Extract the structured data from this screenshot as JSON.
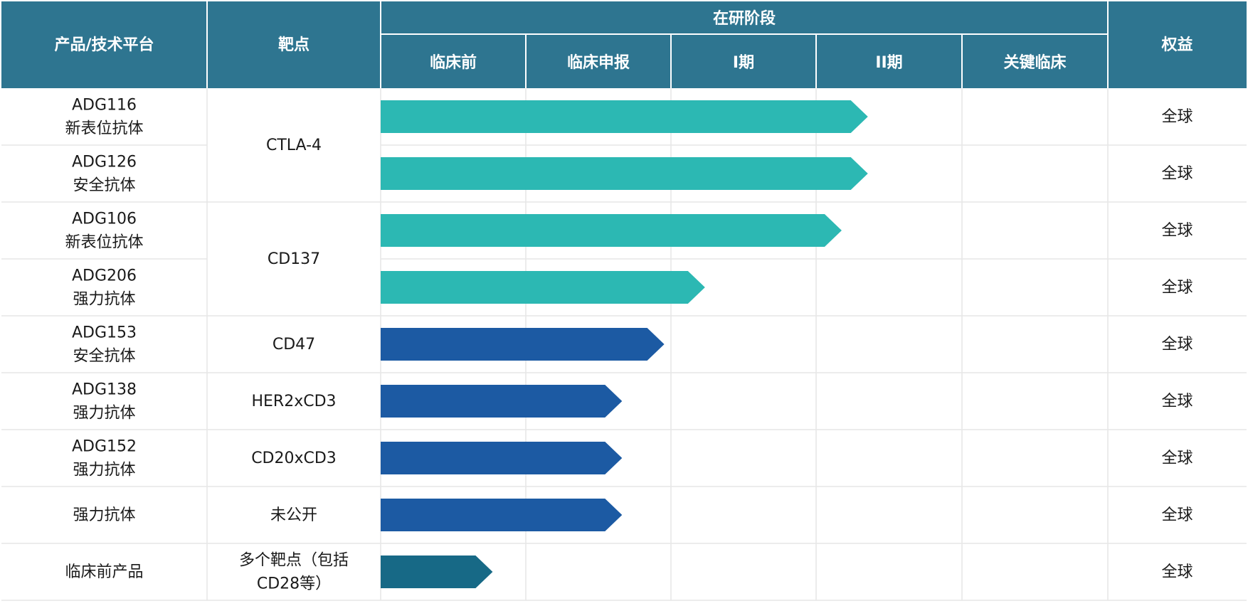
{
  "colors": {
    "header_bg": "#2E7590",
    "header_line": "#ffffff",
    "grid_line": "#E6E6E6",
    "teal": "#2CB8B3",
    "blue": "#1C5AA3",
    "dark_teal": "#176986"
  },
  "header": {
    "product": "产品/技术平台",
    "target": "靶点",
    "stage_group": "在研阶段",
    "rights": "权益",
    "stages": [
      "临床前",
      "临床申报",
      "I期",
      "II期",
      "关键临床"
    ]
  },
  "rows": [
    {
      "product": [
        "ADG116",
        "新表位抗体"
      ],
      "rights": "全球",
      "progress": 3.35,
      "color": "teal"
    },
    {
      "product": [
        "ADG126",
        "安全抗体"
      ],
      "rights": "全球",
      "progress": 3.35,
      "color": "teal"
    },
    {
      "product": [
        "ADG106",
        "新表位抗体"
      ],
      "rights": "全球",
      "progress": 3.17,
      "color": "teal"
    },
    {
      "product": [
        "ADG206",
        "强力抗体"
      ],
      "rights": "全球",
      "progress": 2.23,
      "color": "teal"
    },
    {
      "product": [
        "ADG153",
        "安全抗体"
      ],
      "rights": "全球",
      "progress": 1.95,
      "color": "blue"
    },
    {
      "product": [
        "ADG138",
        "强力抗体"
      ],
      "rights": "全球",
      "progress": 1.66,
      "color": "blue"
    },
    {
      "product": [
        "ADG152",
        "强力抗体"
      ],
      "rights": "全球",
      "progress": 1.66,
      "color": "blue"
    },
    {
      "product": [
        "强力抗体"
      ],
      "rights": "全球",
      "progress": 1.66,
      "color": "blue"
    },
    {
      "product": [
        "临床前产品"
      ],
      "rights": "全球",
      "progress": 0.77,
      "color": "dark_teal"
    }
  ],
  "targets": [
    {
      "label": [
        "CTLA-4"
      ],
      "row_start": 0,
      "row_span": 2
    },
    {
      "label": [
        "CD137"
      ],
      "row_start": 2,
      "row_span": 2
    },
    {
      "label": [
        "CD47"
      ],
      "row_start": 4,
      "row_span": 1
    },
    {
      "label": [
        "HER2xCD3"
      ],
      "row_start": 5,
      "row_span": 1
    },
    {
      "label": [
        "CD20xCD3"
      ],
      "row_start": 6,
      "row_span": 1
    },
    {
      "label": [
        "未公开"
      ],
      "row_start": 7,
      "row_span": 1
    },
    {
      "label": [
        "多个靶点（包括",
        "CD28等）"
      ],
      "row_start": 8,
      "row_span": 1
    }
  ],
  "chart_data": {
    "type": "bar",
    "categories": [
      "ADG116",
      "ADG126",
      "ADG106",
      "ADG206",
      "ADG153",
      "ADG138",
      "ADG152",
      "强力抗体",
      "临床前产品"
    ],
    "stages": [
      "临床前",
      "临床申报",
      "I期",
      "II期",
      "关键临床"
    ],
    "values": [
      3.35,
      3.35,
      3.17,
      2.23,
      1.95,
      1.66,
      1.66,
      1.66,
      0.77
    ],
    "value_unit": "stage columns completed (0–5)",
    "xlim": [
      0,
      5
    ]
  }
}
